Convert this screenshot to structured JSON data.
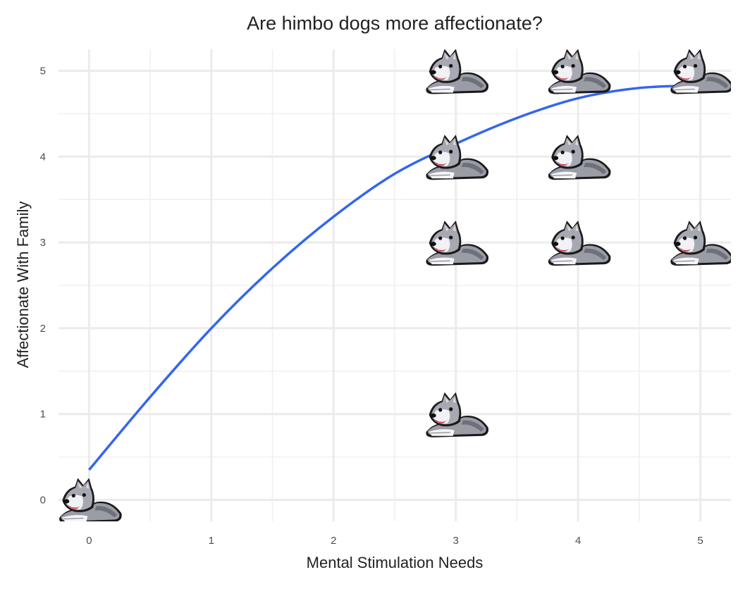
{
  "chart_data": {
    "type": "scatter",
    "title": "Are himbo dogs more affectionate?",
    "xlabel": "Mental Stimulation Needs",
    "ylabel": "Affectionate With Family",
    "xlim": [
      -0.25,
      5.25
    ],
    "ylim": [
      -0.25,
      5.25
    ],
    "x_ticks": [
      0,
      1,
      2,
      3,
      4,
      5
    ],
    "y_ticks": [
      0,
      1,
      2,
      3,
      4,
      5
    ],
    "grid": true,
    "legend": "none",
    "marker": "husky-dog-icon",
    "points": [
      {
        "x": 0,
        "y": 0
      },
      {
        "x": 3,
        "y": 1
      },
      {
        "x": 3,
        "y": 3
      },
      {
        "x": 3,
        "y": 4
      },
      {
        "x": 3,
        "y": 5
      },
      {
        "x": 4,
        "y": 3
      },
      {
        "x": 4,
        "y": 4
      },
      {
        "x": 4,
        "y": 5
      },
      {
        "x": 5,
        "y": 3
      },
      {
        "x": 5,
        "y": 5
      }
    ],
    "trend": {
      "type": "smooth",
      "color": "#3366ee",
      "x": [
        0,
        0.5,
        1,
        1.5,
        2,
        2.5,
        3,
        3.5,
        4,
        4.5,
        5
      ],
      "y": [
        0.35,
        1.2,
        2.0,
        2.7,
        3.3,
        3.8,
        4.15,
        4.45,
        4.68,
        4.8,
        4.83
      ]
    }
  }
}
